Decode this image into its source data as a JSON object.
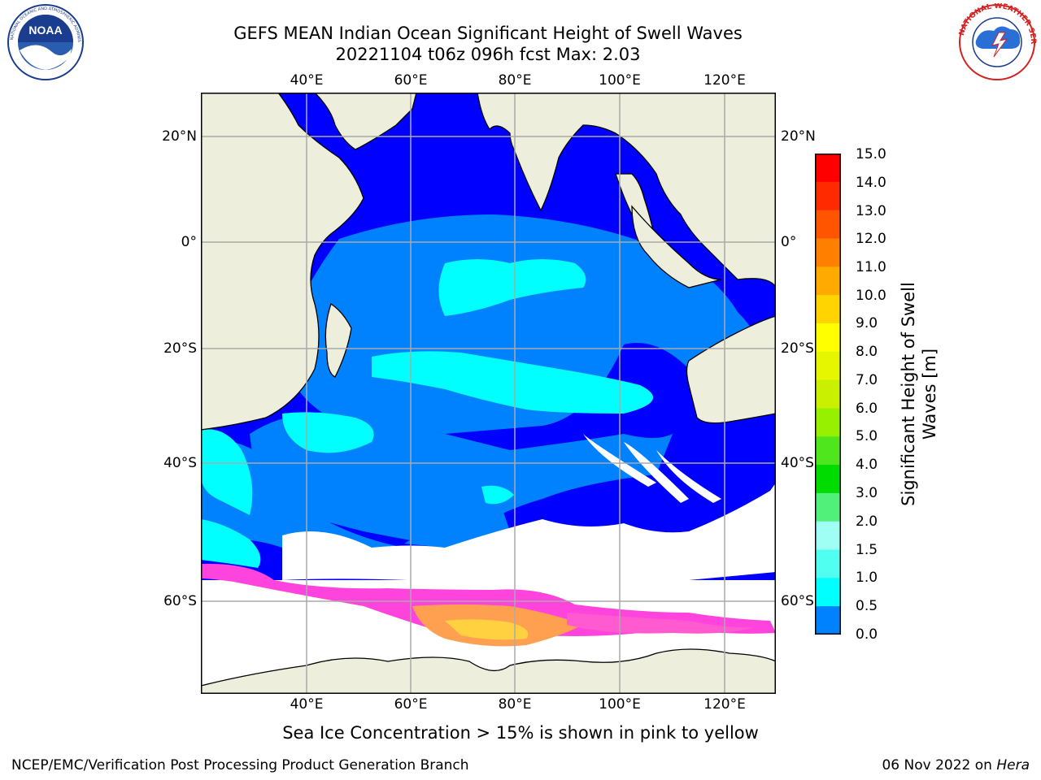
{
  "title": {
    "line1": "GEFS MEAN Indian Ocean Significant Height of Swell Waves",
    "line2": "20221104 t06z 096h fcst   Max: 2.03"
  },
  "logos": {
    "left": {
      "icon": "noaa-logo",
      "text": "NOAA",
      "ring_text": "NATIONAL OCEANIC AND ATMOSPHERIC ADMINISTRATION · U.S. DEPARTMENT OF COMMERCE"
    },
    "right": {
      "icon": "nws-logo",
      "ring_text": "NATIONAL WEATHER SERVICE"
    }
  },
  "axes": {
    "lon_ticks": [
      "40°E",
      "60°E",
      "80°E",
      "100°E",
      "120°E"
    ],
    "lat_ticks": [
      "20°N",
      "0°",
      "20°S",
      "40°S",
      "60°S"
    ]
  },
  "colorbar": {
    "title": "Significant Height of Swell Waves [m]",
    "labels": [
      "15.0",
      "14.0",
      "13.0",
      "12.0",
      "11.0",
      "10.0",
      "9.0",
      "8.0",
      "7.0",
      "6.0",
      "5.0",
      "4.0",
      "3.0",
      "2.0",
      "1.5",
      "1.0",
      "0.5",
      "0.0"
    ],
    "colors": [
      "#ff0000",
      "#ff2a00",
      "#ff5500",
      "#ff7f00",
      "#ffaa00",
      "#ffd400",
      "#ffff00",
      "#e6f500",
      "#c8f000",
      "#96f000",
      "#50e61e",
      "#00dc00",
      "#50f07a",
      "#a0fff5",
      "#50fff0",
      "#00ffff",
      "#0082ff",
      "#0000ff"
    ]
  },
  "map": {
    "land_color": "#eeeedc",
    "ocean_colors": {
      "lt_0_5": "#0000ff",
      "0_5_1_0": "#0082ff",
      "1_0_1_5": "#00ffff"
    },
    "ice_colors": [
      "#ff44dd",
      "#ffa050",
      "#ffd040"
    ]
  },
  "footnote": "Sea Ice Concentration > 15% is shown in pink to yellow",
  "credit_left": "NCEP/EMC/Verification Post Processing Product Generation Branch",
  "credit_right_date": "06 Nov 2022 on",
  "credit_right_host": "Hera"
}
